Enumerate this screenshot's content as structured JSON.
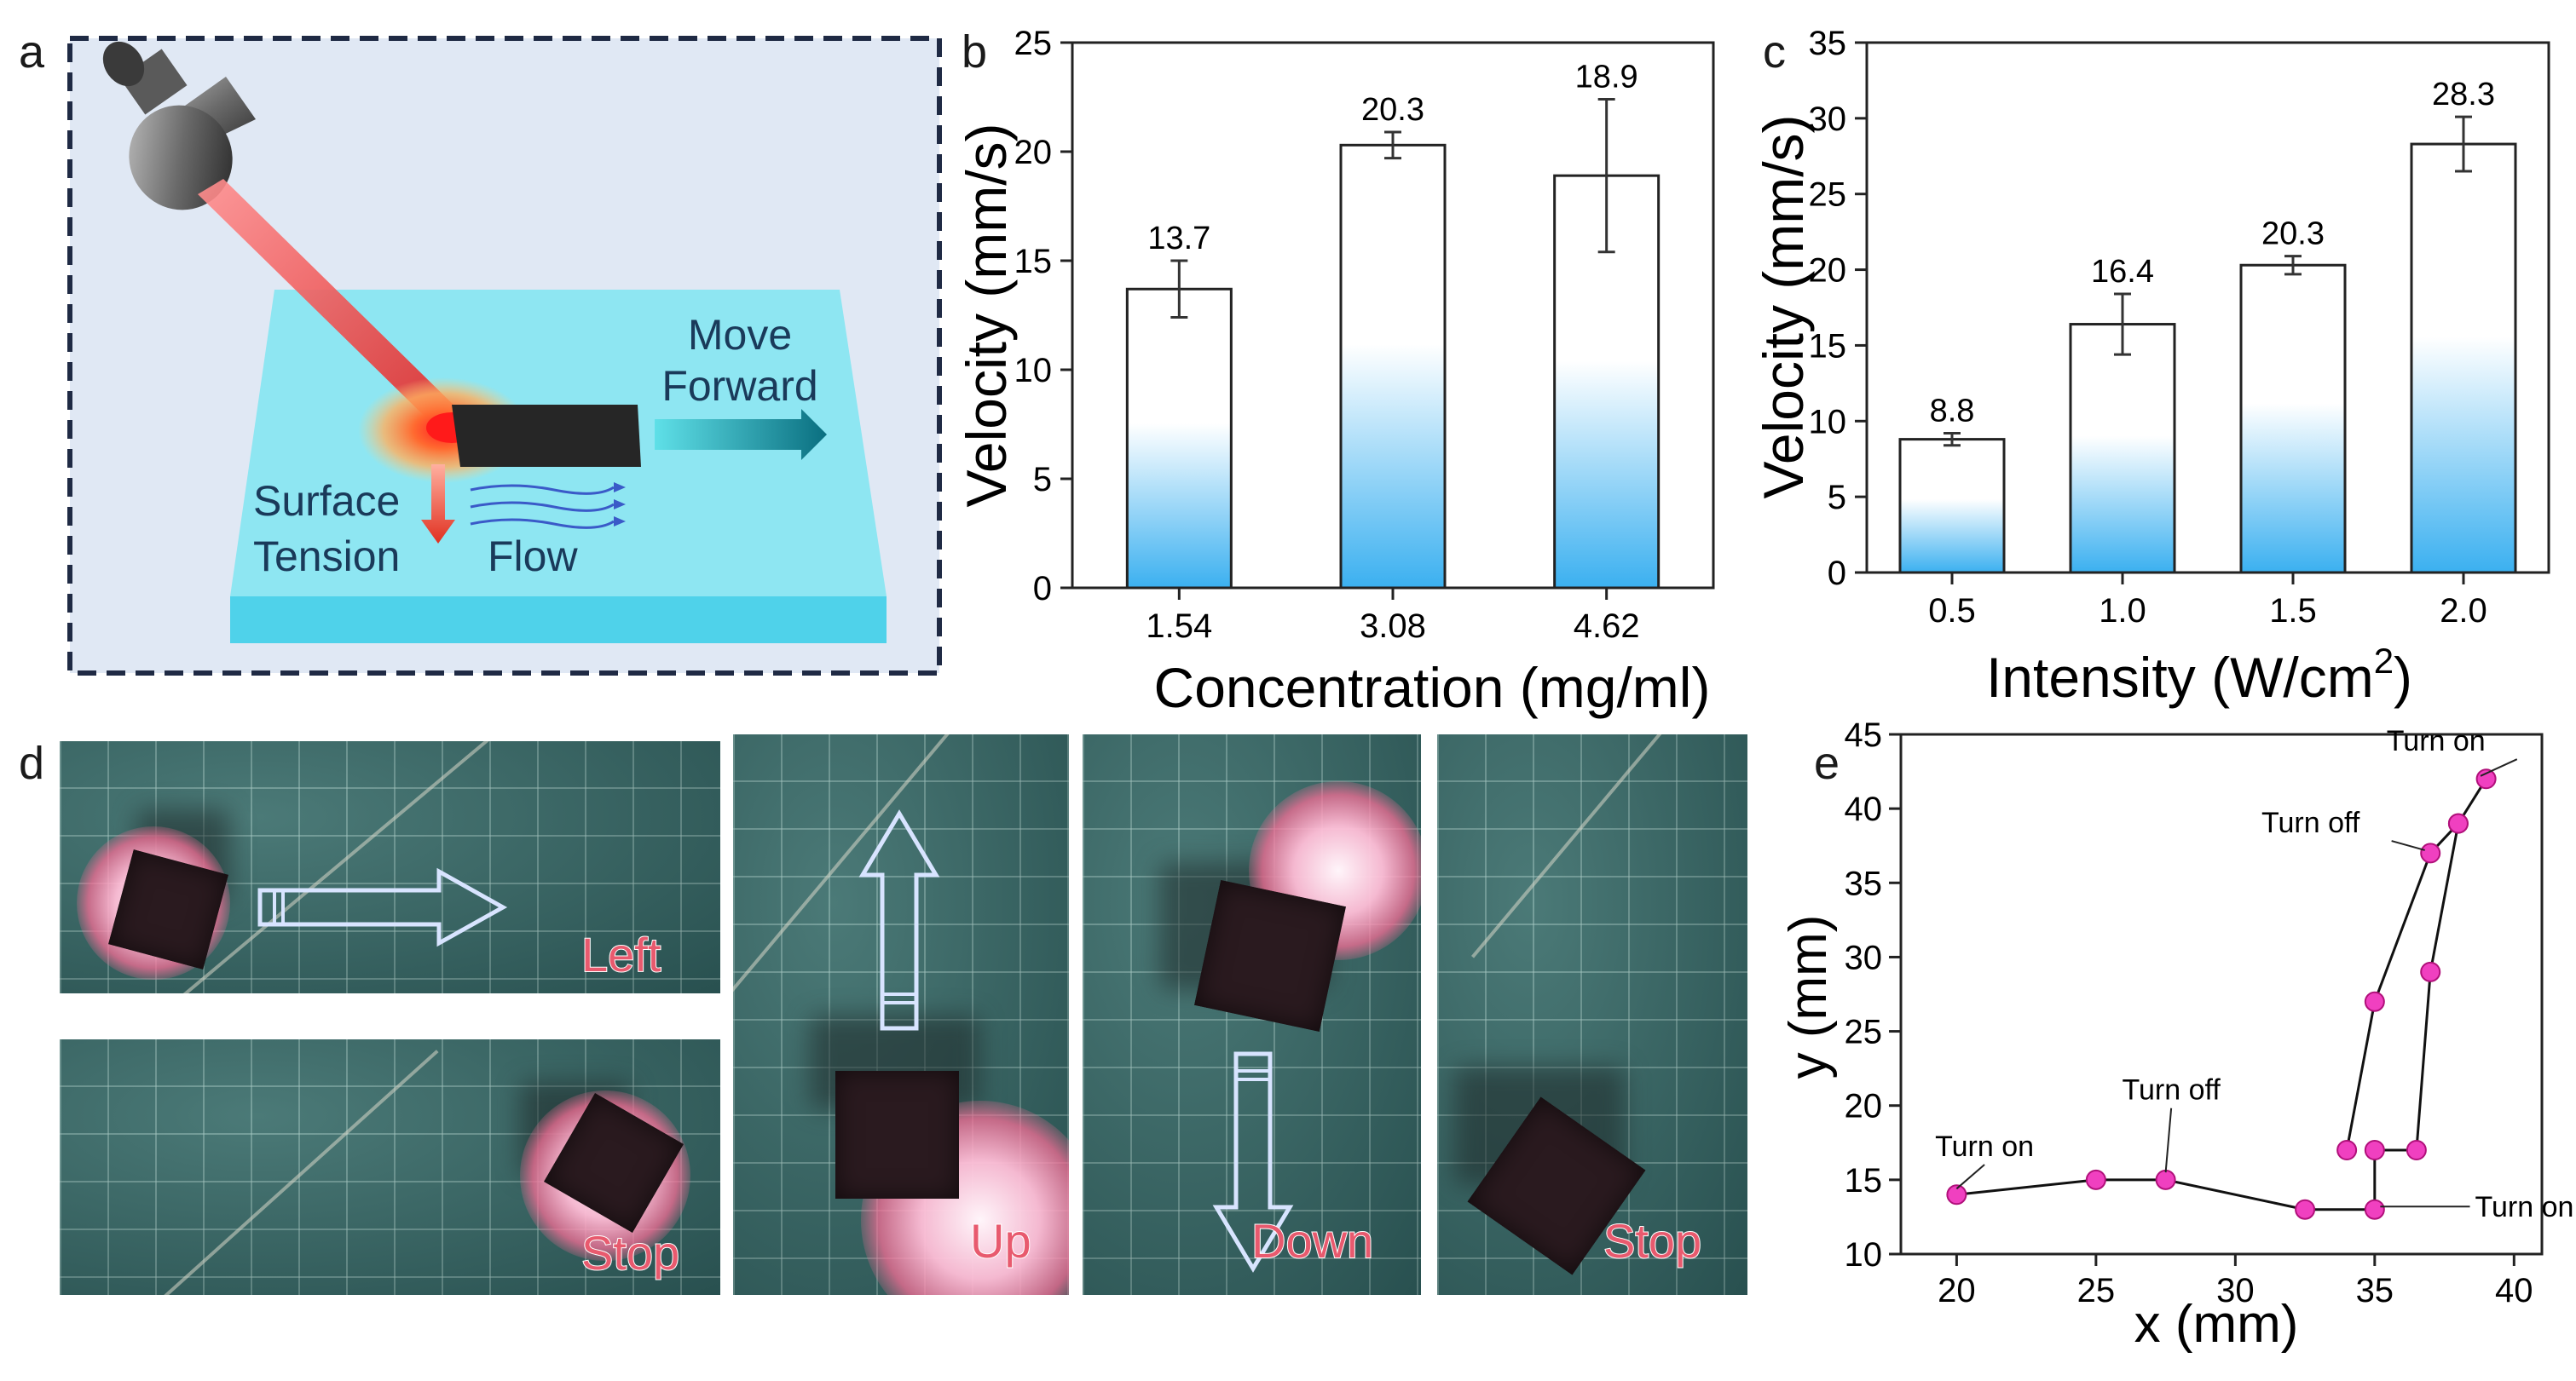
{
  "panels": {
    "a": "a",
    "b": "b",
    "c": "c",
    "d": "d",
    "e": "e"
  },
  "schematic": {
    "move_label_1": "Move",
    "move_label_2": "Forward",
    "surface_label_1": "Surface",
    "surface_label_2": "Tension",
    "flow_label": "Flow",
    "colors": {
      "background": "#e0e8f4",
      "border": "#1f2a44",
      "substrate": "#7fe0ef",
      "laser": "#e04040",
      "arrow": "#1ea0b0"
    }
  },
  "photos": {
    "left_caption": "Left",
    "stop_caption_1": "Stop",
    "up_caption": "Up",
    "down_caption": "Down",
    "stop_caption_2": "Stop"
  },
  "chart_data": [
    {
      "panel": "b",
      "type": "bar",
      "categories": [
        "1.54",
        "3.08",
        "4.62"
      ],
      "values": [
        13.7,
        20.3,
        18.9
      ],
      "value_labels": [
        "13.7",
        "20.3",
        "18.9"
      ],
      "errors": [
        1.3,
        0.6,
        3.5
      ],
      "xlabel": "Concentration (mg/ml)",
      "ylabel": "Velocity (mm/s)",
      "ylim": [
        0,
        25
      ],
      "yticks": [
        "0",
        "5",
        "10",
        "15",
        "20",
        "25"
      ],
      "colors": {
        "bar_top": "#ffffff",
        "bar_bottom": "#3bb0f0"
      }
    },
    {
      "panel": "c",
      "type": "bar",
      "categories": [
        "0.5",
        "1.0",
        "1.5",
        "2.0"
      ],
      "values": [
        8.8,
        16.4,
        20.3,
        28.3
      ],
      "value_labels": [
        "8.8",
        "16.4",
        "20.3",
        "28.3"
      ],
      "errors": [
        0.4,
        2.0,
        0.6,
        1.8
      ],
      "xlabel": "Intensity (W/cm",
      "xlabel_sup": "2",
      "xlabel_end": ")",
      "ylabel": "Velocity (mm/s)",
      "ylim": [
        0,
        35
      ],
      "yticks": [
        "0",
        "5",
        "10",
        "15",
        "20",
        "25",
        "30",
        "35"
      ],
      "colors": {
        "bar_top": "#ffffff",
        "bar_bottom": "#3bb0f0"
      }
    },
    {
      "panel": "e",
      "type": "line",
      "x": [
        20,
        25,
        27.5,
        32.5,
        35,
        35,
        36.5,
        37,
        38,
        39,
        38,
        37,
        35,
        34
      ],
      "y": [
        14,
        15,
        15,
        13,
        13,
        17,
        17,
        29,
        39,
        42,
        39,
        37,
        27,
        17
      ],
      "xlabel": "x (mm)",
      "ylabel": "y (mm)",
      "xlim": [
        18,
        41
      ],
      "ylim": [
        10,
        45
      ],
      "xticks": [
        "20",
        "25",
        "30",
        "35",
        "40"
      ],
      "yticks": [
        "10",
        "15",
        "20",
        "25",
        "30",
        "35",
        "40",
        "45"
      ],
      "annotations": [
        "Turn on",
        "Turn off",
        "Turn on",
        "Turn off",
        "Turn on"
      ],
      "colors": {
        "marker": "#f040c0",
        "line": "#111111"
      }
    }
  ]
}
